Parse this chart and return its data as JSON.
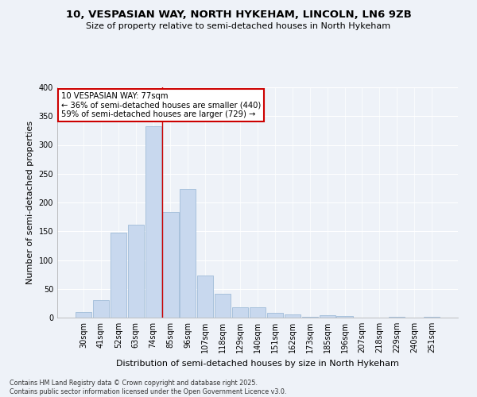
{
  "title1": "10, VESPASIAN WAY, NORTH HYKEHAM, LINCOLN, LN6 9ZB",
  "title2": "Size of property relative to semi-detached houses in North Hykeham",
  "xlabel": "Distribution of semi-detached houses by size in North Hykeham",
  "ylabel": "Number of semi-detached properties",
  "categories": [
    "30sqm",
    "41sqm",
    "52sqm",
    "63sqm",
    "74sqm",
    "85sqm",
    "96sqm",
    "107sqm",
    "118sqm",
    "129sqm",
    "140sqm",
    "151sqm",
    "162sqm",
    "173sqm",
    "185sqm",
    "196sqm",
    "207sqm",
    "218sqm",
    "229sqm",
    "240sqm",
    "251sqm"
  ],
  "values": [
    10,
    30,
    148,
    162,
    333,
    184,
    224,
    73,
    42,
    18,
    18,
    8,
    6,
    2,
    4,
    3,
    0,
    0,
    2,
    0,
    1
  ],
  "bar_color": "#c8d8ee",
  "bar_edge_color": "#a0bcd8",
  "vline_x_index": 4,
  "vline_color": "#cc0000",
  "annotation_title": "10 VESPASIAN WAY: 77sqm",
  "annotation_line1": "← 36% of semi-detached houses are smaller (440)",
  "annotation_line2": "59% of semi-detached houses are larger (729) →",
  "annotation_box_color": "white",
  "annotation_box_edge": "#cc0000",
  "footer1": "Contains HM Land Registry data © Crown copyright and database right 2025.",
  "footer2": "Contains public sector information licensed under the Open Government Licence v3.0.",
  "background_color": "#eef2f8",
  "plot_bg_color": "#eef2f8",
  "ylim": [
    0,
    400
  ],
  "grid_color": "white",
  "title1_fontsize": 9.5,
  "title2_fontsize": 8.0,
  "tick_fontsize": 7.0,
  "axis_label_fontsize": 8.0,
  "footer_fontsize": 5.8
}
